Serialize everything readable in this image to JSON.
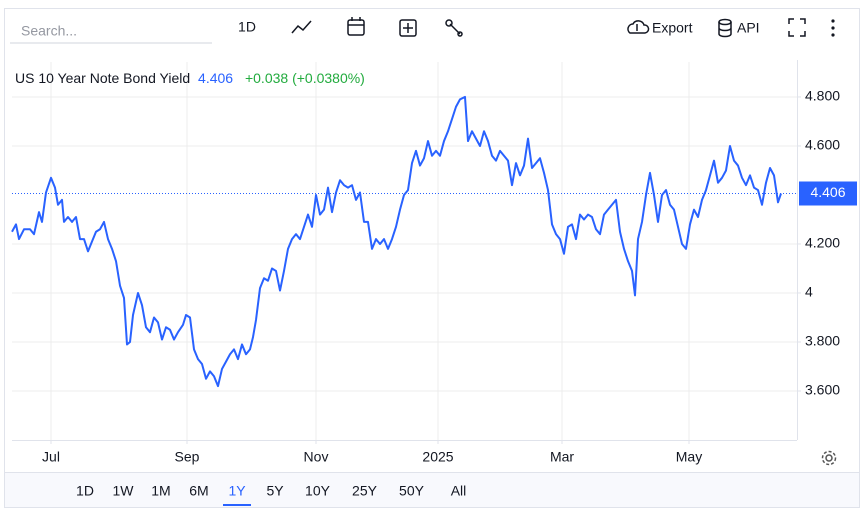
{
  "toolbar": {
    "search_placeholder": "Search...",
    "interval": "1D",
    "export": "Export",
    "api": "API"
  },
  "ranges": [
    "1D",
    "1W",
    "1M",
    "6M",
    "1Y",
    "5Y",
    "10Y",
    "25Y",
    "50Y",
    "All"
  ],
  "active_range": "1Y",
  "chart_data": {
    "type": "line",
    "title": "US 10 Year Note Bond Yield",
    "change": "+0.038 (+0.0380%)",
    "color": "#2962ff",
    "grid": true,
    "xlim": [
      0,
      785
    ],
    "ylim": [
      3.4,
      4.91
    ],
    "xticks": [
      {
        "value": 39,
        "label": "Jul"
      },
      {
        "value": 175,
        "label": "Sep"
      },
      {
        "value": 304,
        "label": "Nov"
      },
      {
        "value": 426,
        "label": "2025"
      },
      {
        "value": 550,
        "label": "Mar"
      },
      {
        "value": 677,
        "label": "May"
      }
    ],
    "yticks": [
      {
        "value": 4.8,
        "label": "4.800"
      },
      {
        "value": 4.6,
        "label": "4.600"
      },
      {
        "value": 4.2,
        "label": "4.200"
      },
      4,
      {
        "value": 3.8,
        "label": "3.800"
      },
      {
        "value": 3.6,
        "label": "3.600"
      }
    ],
    "x": [
      0,
      4,
      7,
      12,
      18,
      22,
      27,
      30,
      34,
      39,
      43,
      46,
      50,
      52,
      56,
      60,
      64,
      68,
      72,
      76,
      80,
      84,
      88,
      92,
      96,
      100,
      104,
      108,
      112,
      115,
      118,
      121,
      126,
      130,
      134,
      138,
      142,
      146,
      150,
      154,
      158,
      162,
      166,
      171,
      174,
      178,
      182,
      186,
      190,
      194,
      198,
      202,
      206,
      210,
      214,
      218,
      222,
      226,
      230,
      234,
      238,
      241,
      244,
      248,
      252,
      256,
      260,
      264,
      268,
      272,
      276,
      280,
      284,
      288,
      292,
      296,
      300,
      304,
      308,
      312,
      316,
      320,
      324,
      328,
      332,
      336,
      340,
      344,
      348,
      352,
      356,
      360,
      364,
      368,
      372,
      376,
      380,
      384,
      388,
      392,
      396,
      400,
      404,
      408,
      412,
      416,
      420,
      424,
      428,
      432,
      436,
      440,
      444,
      448,
      453,
      456,
      460,
      464,
      468,
      472,
      476,
      480,
      484,
      488,
      492,
      496,
      500,
      504,
      508,
      512,
      516,
      520,
      524,
      528,
      532,
      536,
      540,
      544,
      548,
      552,
      556,
      560,
      564,
      568,
      572,
      576,
      580,
      584,
      588,
      592,
      596,
      600,
      604,
      608,
      612,
      616,
      620,
      623,
      626,
      630,
      634,
      638,
      642,
      646,
      650,
      654,
      658,
      662,
      666,
      670,
      674,
      678,
      682,
      686,
      690,
      694,
      698,
      702,
      706,
      710,
      714,
      718,
      722,
      726,
      730,
      734,
      738,
      742,
      746,
      750,
      754,
      758,
      762,
      766,
      769
    ],
    "series": [
      {
        "color": "#2962ff",
        "values": [
          4.25,
          4.28,
          4.22,
          4.26,
          4.26,
          4.24,
          4.33,
          4.29,
          4.41,
          4.47,
          4.43,
          4.36,
          4.38,
          4.29,
          4.31,
          4.29,
          4.31,
          4.22,
          4.22,
          4.17,
          4.21,
          4.25,
          4.26,
          4.29,
          4.22,
          4.18,
          4.13,
          4.03,
          3.98,
          3.79,
          3.8,
          3.91,
          4.0,
          3.95,
          3.86,
          3.84,
          3.9,
          3.88,
          3.81,
          3.86,
          3.85,
          3.81,
          3.84,
          3.87,
          3.91,
          3.9,
          3.77,
          3.73,
          3.71,
          3.65,
          3.68,
          3.66,
          3.62,
          3.69,
          3.72,
          3.75,
          3.77,
          3.73,
          3.79,
          3.75,
          3.77,
          3.82,
          3.89,
          4.02,
          4.06,
          4.05,
          4.1,
          4.09,
          4.01,
          4.09,
          4.18,
          4.22,
          4.24,
          4.22,
          4.27,
          4.32,
          4.27,
          4.4,
          4.32,
          4.34,
          4.43,
          4.33,
          4.41,
          4.46,
          4.44,
          4.43,
          4.44,
          4.38,
          4.41,
          4.29,
          4.29,
          4.18,
          4.22,
          4.2,
          4.22,
          4.18,
          4.22,
          4.27,
          4.34,
          4.4,
          4.42,
          4.53,
          4.58,
          4.52,
          4.55,
          4.62,
          4.56,
          4.58,
          4.56,
          4.62,
          4.66,
          4.71,
          4.76,
          4.79,
          4.8,
          4.62,
          4.66,
          4.63,
          4.6,
          4.66,
          4.62,
          4.56,
          4.54,
          4.58,
          4.56,
          4.54,
          4.44,
          4.53,
          4.48,
          4.52,
          4.63,
          4.51,
          4.53,
          4.55,
          4.49,
          4.42,
          4.28,
          4.24,
          4.22,
          4.16,
          4.27,
          4.28,
          4.22,
          4.32,
          4.3,
          4.32,
          4.31,
          4.26,
          4.24,
          4.32,
          4.34,
          4.36,
          4.38,
          4.25,
          4.18,
          4.13,
          4.09,
          3.99,
          4.22,
          4.29,
          4.4,
          4.49,
          4.4,
          4.29,
          4.4,
          4.42,
          4.36,
          4.34,
          4.27,
          4.2,
          4.18,
          4.28,
          4.34,
          4.31,
          4.38,
          4.42,
          4.48,
          4.54,
          4.45,
          4.47,
          4.5,
          4.6,
          4.54,
          4.52,
          4.47,
          4.44,
          4.48,
          4.43,
          4.42,
          4.36,
          4.45,
          4.51,
          4.48,
          4.37,
          4.406
        ]
      }
    ]
  }
}
